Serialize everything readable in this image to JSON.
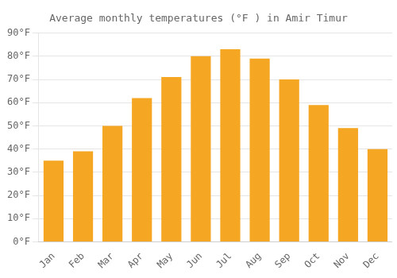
{
  "chart_data": {
    "type": "bar",
    "title": "Average monthly temperatures (°F ) in Amir Timur",
    "categories": [
      "Jan",
      "Feb",
      "Mar",
      "Apr",
      "May",
      "Jun",
      "Jul",
      "Aug",
      "Sep",
      "Oct",
      "Nov",
      "Dec"
    ],
    "values": [
      35,
      39,
      50,
      62,
      71,
      80,
      83,
      79,
      70,
      59,
      49,
      40
    ],
    "color": "#F5A623",
    "ylim": [
      0,
      90
    ],
    "yticks": [
      {
        "value": 0,
        "label": "0°F"
      },
      {
        "value": 10,
        "label": "10°F"
      },
      {
        "value": 20,
        "label": "20°F"
      },
      {
        "value": 30,
        "label": "30°F"
      },
      {
        "value": 40,
        "label": "40°F"
      },
      {
        "value": 50,
        "label": "50°F"
      },
      {
        "value": 60,
        "label": "60°F"
      },
      {
        "value": 70,
        "label": "70°F"
      },
      {
        "value": 80,
        "label": "80°F"
      },
      {
        "value": 90,
        "label": "90°F"
      }
    ],
    "grid": true
  }
}
